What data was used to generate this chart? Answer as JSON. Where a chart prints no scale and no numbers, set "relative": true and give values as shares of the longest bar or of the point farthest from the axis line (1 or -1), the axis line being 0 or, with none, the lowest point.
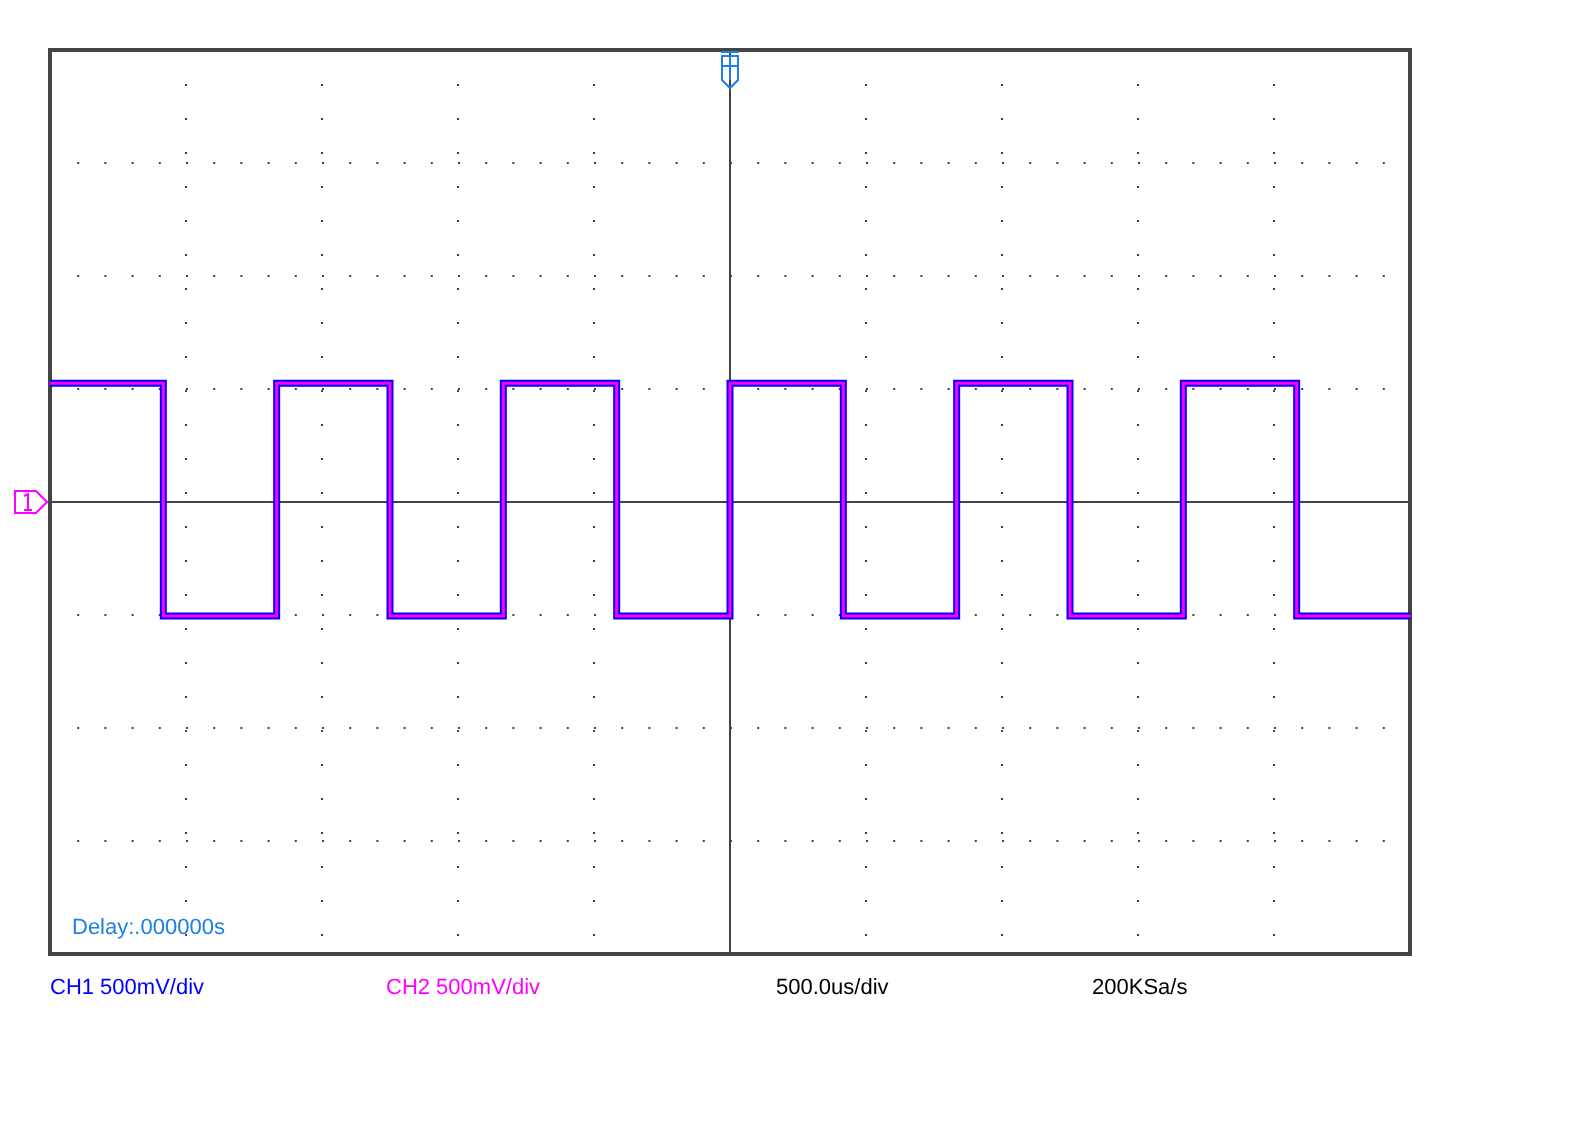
{
  "chart_data": {
    "type": "step",
    "relative": true,
    "grid": true,
    "legend": "bottom",
    "categories": [
      null,
      null,
      null,
      null,
      null,
      null,
      null,
      null,
      null,
      null,
      null,
      null,
      null
    ],
    "series": [
      {
        "name": "CH1 500mV/div",
        "color": "#0000ff",
        "values": [
          1,
          -0.96,
          1,
          -0.96,
          1,
          -0.96,
          1,
          -0.96,
          1,
          -0.96,
          1,
          -0.96,
          -0.96
        ]
      },
      {
        "name": "CH2 500mV/div",
        "color": "#ff00ff",
        "values": [
          1,
          -0.96,
          1,
          -0.96,
          1,
          -0.96,
          1,
          -0.96,
          1,
          -0.96,
          1,
          -0.96,
          -0.96
        ]
      }
    ],
    "annotations": [
      "Delay:.000000s",
      "500.0us/div",
      "200KSa/s"
    ]
  }
}
